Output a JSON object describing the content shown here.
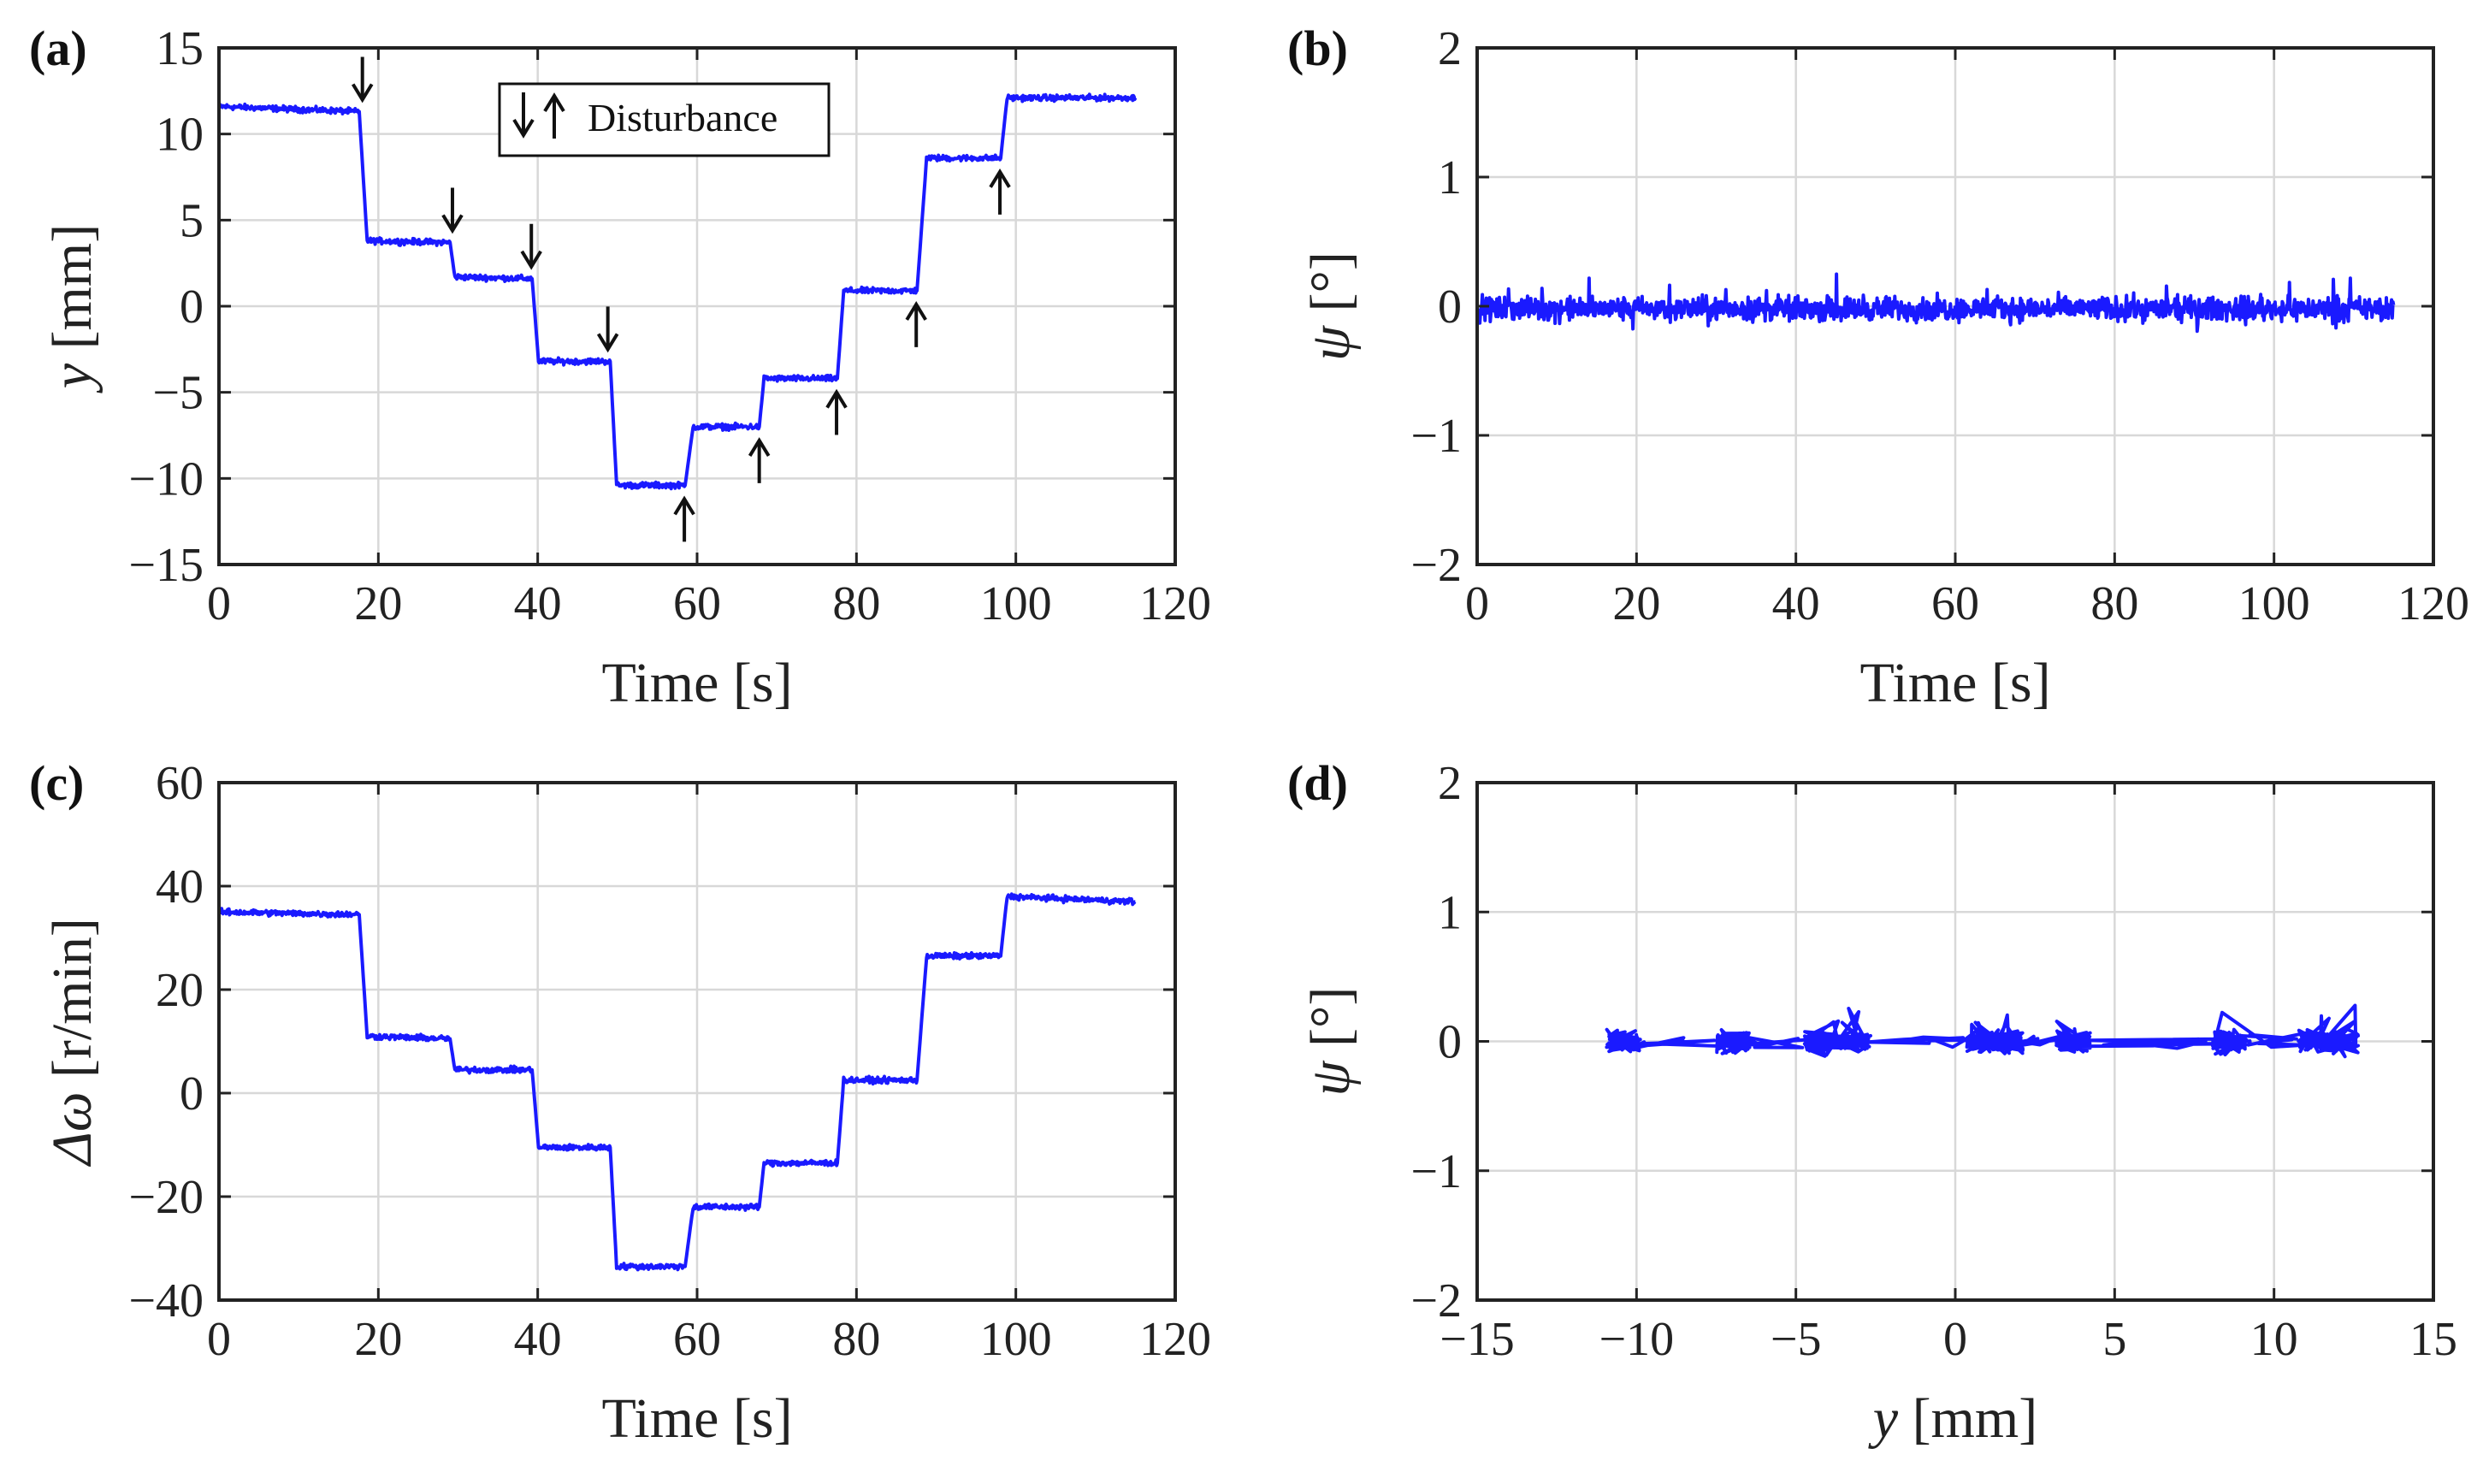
{
  "chart_data": [
    {
      "panel": "(a)",
      "type": "line",
      "xlabel": "Time [s]",
      "ylabel_var": "y",
      "ylabel_unit": " [mm]",
      "xlim": [
        0,
        120
      ],
      "ylim": [
        -15,
        15
      ],
      "xticks": [
        0,
        20,
        40,
        60,
        80,
        100,
        120
      ],
      "yticks": [
        -15,
        -10,
        -5,
        0,
        5,
        10,
        15
      ],
      "grid": true,
      "line_color": "#1a1aff",
      "series": [
        {
          "values_note": "",
          "x": [
            0,
            17.6,
            18.6,
            29.0,
            29.6,
            39.3,
            40.1,
            49.1,
            49.9,
            58.5,
            59.5,
            67.8,
            68.4,
            77.6,
            78.4,
            87.6,
            88.8,
            98.1,
            98.9,
            115
          ],
          "y": [
            11.6,
            11.3,
            3.8,
            3.7,
            1.7,
            1.6,
            -3.2,
            -3.2,
            -10.4,
            -10.4,
            -7.0,
            -7.0,
            -4.2,
            -4.2,
            0.9,
            0.9,
            8.6,
            8.6,
            12.1,
            12.1
          ]
        }
      ],
      "legend": {
        "label": "Disturbance",
        "position": "top-center"
      },
      "annotations": [
        {
          "dir": "down",
          "x": 18.0,
          "y": 11.3
        },
        {
          "dir": "down",
          "x": 29.3,
          "y": 3.7
        },
        {
          "dir": "down",
          "x": 39.2,
          "y": 1.6
        },
        {
          "dir": "down",
          "x": 48.8,
          "y": -3.2
        },
        {
          "dir": "up",
          "x": 58.4,
          "y": -10.4
        },
        {
          "dir": "up",
          "x": 67.8,
          "y": -7.0
        },
        {
          "dir": "up",
          "x": 77.5,
          "y": -4.2
        },
        {
          "dir": "up",
          "x": 87.5,
          "y": 0.9
        },
        {
          "dir": "up",
          "x": 98.0,
          "y": 8.6
        }
      ]
    },
    {
      "panel": "(b)",
      "type": "line",
      "xlabel": "Time [s]",
      "ylabel_var": "ψ",
      "ylabel_unit": " [°]",
      "xlim": [
        0,
        120
      ],
      "ylim": [
        -2,
        2
      ],
      "xticks": [
        0,
        20,
        40,
        60,
        80,
        100,
        120
      ],
      "yticks": [
        -2,
        -1,
        0,
        1,
        2
      ],
      "grid": true,
      "line_color": "#1a1aff",
      "series": [
        {
          "x_range": [
            0,
            115
          ],
          "mean": -0.02,
          "noise_amplitude": 0.1
        }
      ]
    },
    {
      "panel": "(c)",
      "type": "line",
      "xlabel": "Time [s]",
      "ylabel_var": "Δω",
      "ylabel_unit": " [r/min]",
      "xlim": [
        0,
        120
      ],
      "ylim": [
        -40,
        60
      ],
      "xticks": [
        0,
        20,
        40,
        60,
        80,
        100,
        120
      ],
      "yticks": [
        -40,
        -20,
        0,
        20,
        40,
        60
      ],
      "grid": true,
      "line_color": "#1a1aff",
      "series": [
        {
          "x": [
            0,
            17.6,
            18.6,
            29.0,
            29.6,
            39.3,
            40.1,
            49.1,
            49.9,
            58.5,
            59.5,
            67.8,
            68.4,
            77.6,
            78.4,
            87.6,
            88.8,
            98.1,
            98.9,
            115
          ],
          "y": [
            35,
            34.5,
            11,
            10.5,
            4.5,
            4.5,
            -10.5,
            -10.5,
            -33.5,
            -33.5,
            -22,
            -22,
            -13.5,
            -13.5,
            2.5,
            2.5,
            26.5,
            26.5,
            38,
            37
          ]
        }
      ]
    },
    {
      "panel": "(d)",
      "type": "line",
      "xlabel_var": "y",
      "xlabel_unit": " [mm]",
      "ylabel_var": "ψ",
      "ylabel_unit": " [°]",
      "xlim": [
        -15,
        15
      ],
      "ylim": [
        -2,
        2
      ],
      "xticks": [
        -15,
        -10,
        -5,
        0,
        5,
        10,
        15
      ],
      "yticks": [
        -2,
        -1,
        0,
        1,
        2
      ],
      "grid": true,
      "line_color": "#1a1aff",
      "clusters": [
        -10.4,
        -7.0,
        -4.2,
        -3.2,
        0.9,
        1.6,
        3.7,
        8.6,
        11.3,
        12.1
      ],
      "series": [
        {
          "x_range": [
            -10.5,
            13
          ],
          "mean": 0.0,
          "noise_amplitude": 0.1
        }
      ]
    }
  ],
  "tick_minus": "−"
}
